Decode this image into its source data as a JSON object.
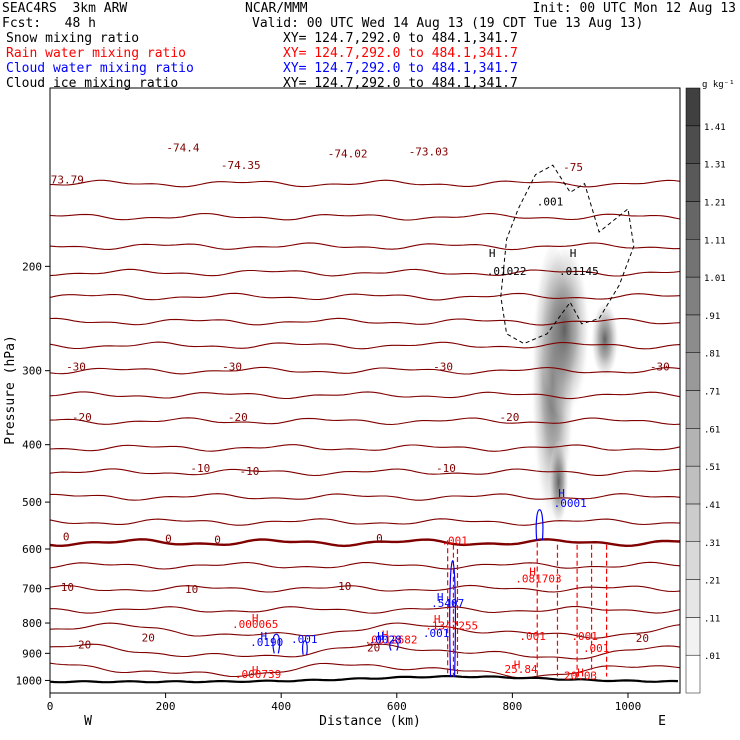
{
  "header": {
    "model": "SEAC4RS  3km ARW",
    "center": "NCAR/MMM",
    "init": "Init: 00 UTC Mon 12 Aug 13",
    "fcst": "Fcst:   48 h",
    "valid": "Valid: 00 UTC Wed 14 Aug 13 (19 CDT Tue 13 Aug 13)",
    "fields": [
      {
        "name": "Snow mixing ratio",
        "xy": "XY= 124.7,292.0 to 484.1,341.7",
        "color": "#000000"
      },
      {
        "name": "Rain water mixing ratio",
        "xy": "XY= 124.7,292.0 to 484.1,341.7",
        "color": "#ff0000"
      },
      {
        "name": "Cloud water mixing ratio",
        "xy": "XY= 124.7,292.0 to 484.1,341.7",
        "color": "#0000ff"
      },
      {
        "name": "Cloud ice mixing ratio",
        "xy": "XY= 124.7,292.0 to 484.1,341.7",
        "color": "#000000"
      }
    ]
  },
  "chart_data": {
    "type": "heatmap",
    "title": "",
    "xlabel": "Distance (km)",
    "ylabel": "Pressure (hPa)",
    "xlim": [
      0,
      1090
    ],
    "ylim": [
      1050,
      100
    ],
    "y_scale": "log",
    "x_ticks": [
      0,
      200,
      400,
      600,
      800,
      1000
    ],
    "y_ticks": [
      200,
      300,
      400,
      500,
      600,
      700,
      800,
      900,
      1000
    ],
    "x_end_labels": {
      "left": "W",
      "right": "E"
    },
    "colorbar": {
      "unit": "g kg⁻¹",
      "levels": [
        ".01",
        ".11",
        ".21",
        ".31",
        ".41",
        ".51",
        ".61",
        ".71",
        ".81",
        ".91",
        "1.01",
        "1.11",
        "1.21",
        "1.31",
        "1.41"
      ],
      "grays": [
        "#ffffff",
        "#f2f2f2",
        "#e6e6e6",
        "#d9d9d9",
        "#cccccc",
        "#bfbfbf",
        "#b3b3b3",
        "#a6a6a6",
        "#999999",
        "#8c8c8c",
        "#808080",
        "#737373",
        "#666666",
        "#595959",
        "#4d4d4d",
        "#404040"
      ]
    },
    "temperature_contours": {
      "color": "#800000",
      "freezing_color": "#800000",
      "levels_hpa": [
        145,
        165,
        185,
        205,
        225,
        248,
        272,
        300,
        330,
        365,
        405,
        445,
        490,
        540,
        585,
        640,
        700,
        760,
        825,
        895,
        960
      ],
      "labels": [
        {
          "text": "73.79",
          "x": 30,
          "p": 145
        },
        {
          "text": "-74.4",
          "x": 230,
          "p": 128
        },
        {
          "text": "-74.35",
          "x": 330,
          "p": 137
        },
        {
          "text": "-74.02",
          "x": 515,
          "p": 131
        },
        {
          "text": "-73.03",
          "x": 655,
          "p": 130
        },
        {
          "text": "-75",
          "x": 905,
          "p": 138
        },
        {
          "text": "-30",
          "x": 45,
          "p": 300
        },
        {
          "text": "-30",
          "x": 315,
          "p": 300
        },
        {
          "text": "-30",
          "x": 680,
          "p": 300
        },
        {
          "text": "-30",
          "x": 1055,
          "p": 300
        },
        {
          "text": "-20",
          "x": 55,
          "p": 365
        },
        {
          "text": "-20",
          "x": 325,
          "p": 365
        },
        {
          "text": "-20",
          "x": 795,
          "p": 365
        },
        {
          "text": "-10",
          "x": 260,
          "p": 445
        },
        {
          "text": "-10",
          "x": 345,
          "p": 450
        },
        {
          "text": "-10",
          "x": 685,
          "p": 445
        },
        {
          "text": "0",
          "x": 28,
          "p": 580
        },
        {
          "text": "0",
          "x": 205,
          "p": 585
        },
        {
          "text": "0",
          "x": 290,
          "p": 587
        },
        {
          "text": "0",
          "x": 570,
          "p": 584
        },
        {
          "text": "10",
          "x": 30,
          "p": 707
        },
        {
          "text": "10",
          "x": 245,
          "p": 712
        },
        {
          "text": "10",
          "x": 510,
          "p": 704
        },
        {
          "text": "20",
          "x": 60,
          "p": 883
        },
        {
          "text": "20",
          "x": 170,
          "p": 860
        },
        {
          "text": "20",
          "x": 560,
          "p": 894
        },
        {
          "text": "20",
          "x": 1025,
          "p": 862
        }
      ]
    },
    "snow_max_labels": [
      {
        "text": "H",
        "x": 765,
        "p": 193
      },
      {
        "text": ".01022",
        "x": 790,
        "p": 207
      },
      {
        "text": "H",
        "x": 905,
        "p": 193
      },
      {
        "text": ".01145",
        "x": 915,
        "p": 207
      },
      {
        "text": ".001",
        "x": 865,
        "p": 158
      }
    ],
    "rain_labels": [
      {
        "text": "H",
        "x": 355,
        "p": 797
      },
      {
        "text": ".000065",
        "x": 355,
        "p": 815
      },
      {
        "text": "H",
        "x": 580,
        "p": 850
      },
      {
        "text": ".0012682",
        "x": 590,
        "p": 866
      },
      {
        "text": "H",
        "x": 670,
        "p": 800
      },
      {
        "text": ".1347255",
        "x": 695,
        "p": 820
      },
      {
        "text": "H",
        "x": 835,
        "p": 665
      },
      {
        "text": ".081703",
        "x": 845,
        "p": 683
      },
      {
        "text": ".001",
        "x": 700,
        "p": 590
      },
      {
        "text": ".001",
        "x": 835,
        "p": 855
      },
      {
        "text": ".001",
        "x": 925,
        "p": 855
      },
      {
        "text": ".001",
        "x": 945,
        "p": 895
      },
      {
        "text": "H",
        "x": 355,
        "p": 975
      },
      {
        "text": ".000739",
        "x": 360,
        "p": 990
      },
      {
        "text": "H",
        "x": 808,
        "p": 955
      },
      {
        "text": "25.84",
        "x": 815,
        "p": 972
      },
      {
        "text": "H",
        "x": 918,
        "p": 985
      },
      {
        "text": "20.03",
        "x": 918,
        "p": 997
      }
    ],
    "cloud_water_labels": [
      {
        "text": "H",
        "x": 370,
        "p": 855
      },
      {
        "text": ".0190",
        "x": 375,
        "p": 875
      },
      {
        "text": ".001",
        "x": 440,
        "p": 865
      },
      {
        "text": "H",
        "x": 572,
        "p": 855
      },
      {
        "text": ".0028",
        "x": 580,
        "p": 866
      },
      {
        "text": "H",
        "x": 675,
        "p": 735
      },
      {
        "text": ".5407",
        "x": 688,
        "p": 752
      },
      {
        "text": ".001",
        "x": 668,
        "p": 845
      },
      {
        "text": "H",
        "x": 885,
        "p": 490
      },
      {
        "text": ".0001",
        "x": 900,
        "p": 510
      }
    ]
  }
}
